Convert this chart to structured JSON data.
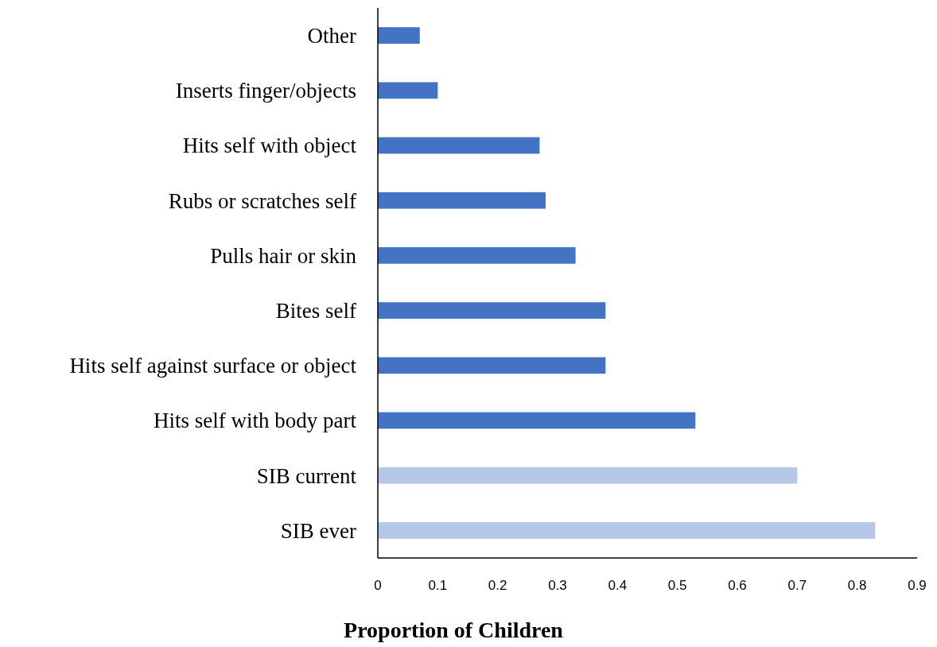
{
  "chart_data": {
    "type": "bar",
    "orientation": "horizontal",
    "xlabel": "Proportion of Children",
    "categories": [
      "Other",
      "Inserts finger/objects",
      "Hits self with object",
      "Rubs or scratches self",
      "Pulls hair or skin",
      "Bites self",
      "Hits self against surface or object",
      "Hits self with body part",
      "SIB current",
      "SIB ever"
    ],
    "values": [
      0.07,
      0.1,
      0.27,
      0.28,
      0.33,
      0.38,
      0.38,
      0.53,
      0.7,
      0.83
    ],
    "colors": [
      "#4472c4",
      "#4472c4",
      "#4472c4",
      "#4472c4",
      "#4472c4",
      "#4472c4",
      "#4472c4",
      "#4472c4",
      "#b4c7e7",
      "#b4c7e7"
    ],
    "xlim": [
      0,
      0.9
    ],
    "xticks": [
      0,
      0.1,
      0.2,
      0.3,
      0.4,
      0.5,
      0.6,
      0.7,
      0.8,
      0.9
    ]
  }
}
